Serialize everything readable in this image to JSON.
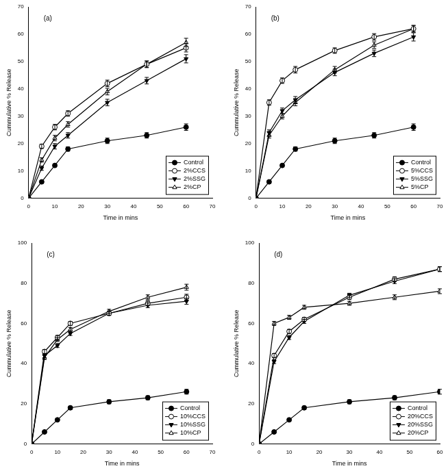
{
  "chart_data": [
    {
      "type": "line",
      "annotations": [
        "(a)"
      ],
      "x_label": "Time in mins",
      "y_label": "Cummulative % Release",
      "x": [
        0,
        5,
        10,
        15,
        30,
        45,
        60
      ],
      "xlim": [
        0,
        70
      ],
      "xticks": [
        0,
        10,
        20,
        30,
        40,
        50,
        60,
        70
      ],
      "ylim": [
        0,
        70
      ],
      "yticks": [
        0,
        10,
        20,
        30,
        40,
        50,
        60,
        70
      ],
      "grid": false,
      "legend": "lower right",
      "series": [
        {
          "name": "Control",
          "color": "#000000",
          "marker": "circle",
          "values": [
            0,
            6,
            12,
            18,
            21,
            23,
            26
          ],
          "errors": [
            0,
            0.5,
            0.5,
            0.8,
            1,
            1,
            1.2
          ]
        },
        {
          "name": "2%CCS",
          "color": "#000000",
          "marker": "circle-open",
          "values": [
            0,
            19,
            26,
            31,
            42,
            49,
            55
          ],
          "errors": [
            0,
            0.8,
            1,
            1,
            1.2,
            1.2,
            1.5
          ]
        },
        {
          "name": "2%SSG",
          "color": "#000000",
          "marker": "triangle-down",
          "values": [
            0,
            11,
            19,
            23,
            35,
            43,
            51
          ],
          "errors": [
            0,
            0.8,
            1,
            1,
            1.2,
            1.2,
            1.5
          ]
        },
        {
          "name": "2%CP",
          "color": "#000000",
          "marker": "triangle-open",
          "values": [
            0,
            14,
            22,
            27,
            39,
            49,
            57
          ],
          "errors": [
            0,
            0.8,
            1,
            1,
            1.2,
            1.2,
            1.5
          ]
        }
      ]
    },
    {
      "type": "line",
      "annotations": [
        "(b)"
      ],
      "x_label": "Time in mins",
      "y_label": "Cummulative % Release",
      "x": [
        0,
        5,
        10,
        15,
        30,
        45,
        60
      ],
      "xlim": [
        0,
        70
      ],
      "xticks": [
        0,
        10,
        20,
        30,
        40,
        50,
        60,
        70
      ],
      "ylim": [
        0,
        70
      ],
      "yticks": [
        0,
        10,
        20,
        30,
        40,
        50,
        60,
        70
      ],
      "grid": false,
      "legend": "lower right",
      "series": [
        {
          "name": "Control",
          "color": "#000000",
          "marker": "circle",
          "values": [
            0,
            6,
            12,
            18,
            21,
            23,
            26
          ],
          "errors": [
            0,
            0.5,
            0.5,
            0.8,
            1,
            1,
            1.2
          ]
        },
        {
          "name": "5%CCS",
          "color": "#000000",
          "marker": "circle-open",
          "values": [
            0,
            35,
            43,
            47,
            54,
            59,
            62
          ],
          "errors": [
            0,
            1,
            1,
            1.2,
            1,
            1.2,
            1.2
          ]
        },
        {
          "name": "5%SSG",
          "color": "#000000",
          "marker": "triangle-down",
          "values": [
            0,
            24,
            32,
            36,
            46,
            53,
            59
          ],
          "errors": [
            0,
            1,
            1,
            1.2,
            1.2,
            1.2,
            1.5
          ]
        },
        {
          "name": "5%CP",
          "color": "#000000",
          "marker": "triangle-open",
          "values": [
            0,
            23,
            30,
            35,
            47,
            56,
            62
          ],
          "errors": [
            0,
            1,
            1,
            1.2,
            1.2,
            1.2,
            1.2
          ]
        }
      ]
    },
    {
      "type": "line",
      "annotations": [
        "(c)"
      ],
      "x_label": "Time in mins",
      "y_label": "Cummulative % Release",
      "x": [
        0,
        5,
        10,
        15,
        30,
        45,
        60
      ],
      "xlim": [
        0,
        70
      ],
      "xticks": [
        0,
        10,
        20,
        30,
        40,
        50,
        60,
        70
      ],
      "ylim": [
        0,
        100
      ],
      "yticks": [
        0,
        20,
        40,
        60,
        80,
        100
      ],
      "grid": false,
      "legend": "lower right",
      "series": [
        {
          "name": "Control",
          "color": "#000000",
          "marker": "circle",
          "values": [
            0,
            6,
            12,
            18,
            21,
            23,
            26
          ],
          "errors": [
            0,
            0.5,
            0.5,
            0.8,
            1,
            1,
            1.2
          ]
        },
        {
          "name": "10%CCS",
          "color": "#000000",
          "marker": "circle-open",
          "values": [
            0,
            46,
            53,
            60,
            65,
            70,
            73
          ],
          "errors": [
            0,
            1,
            1,
            1,
            1,
            1.2,
            1.5
          ]
        },
        {
          "name": "10%SSG",
          "color": "#000000",
          "marker": "triangle-down",
          "values": [
            0,
            44,
            49,
            55,
            65,
            69,
            71
          ],
          "errors": [
            0,
            1,
            1,
            1,
            1,
            1.2,
            1.5
          ]
        },
        {
          "name": "10%CP",
          "color": "#000000",
          "marker": "triangle-open",
          "values": [
            0,
            43,
            52,
            57,
            66,
            73,
            78
          ],
          "errors": [
            0,
            1,
            1,
            1,
            1,
            1.2,
            1.5
          ]
        }
      ]
    },
    {
      "type": "line",
      "annotations": [
        "(d)"
      ],
      "x_label": "Time in mins",
      "y_label": "Cummulative % Release",
      "x": [
        0,
        5,
        10,
        15,
        30,
        45,
        60
      ],
      "xlim": [
        0,
        60
      ],
      "xticks": [
        0,
        10,
        20,
        30,
        40,
        50,
        60
      ],
      "ylim": [
        0,
        100
      ],
      "yticks": [
        0,
        20,
        40,
        60,
        80,
        100
      ],
      "grid": false,
      "legend": "lower right",
      "series": [
        {
          "name": "Control",
          "color": "#000000",
          "marker": "circle",
          "values": [
            0,
            6,
            12,
            18,
            21,
            23,
            26
          ],
          "errors": [
            0,
            0.5,
            0.5,
            0.8,
            1,
            1,
            1.2
          ]
        },
        {
          "name": "20%CCS",
          "color": "#000000",
          "marker": "circle-open",
          "values": [
            0,
            44,
            56,
            62,
            73,
            82,
            87
          ],
          "errors": [
            0,
            1,
            1,
            1,
            1,
            1.2,
            1.2
          ]
        },
        {
          "name": "20%SSG",
          "color": "#000000",
          "marker": "triangle-down",
          "values": [
            0,
            41,
            53,
            61,
            74,
            81,
            87
          ],
          "errors": [
            0,
            1,
            1,
            1,
            1,
            1.2,
            1.2
          ]
        },
        {
          "name": "20%CP",
          "color": "#000000",
          "marker": "triangle-open",
          "values": [
            0,
            60,
            63,
            68,
            70,
            73,
            76
          ],
          "errors": [
            0,
            1,
            1,
            1,
            1,
            1.2,
            1.2
          ]
        }
      ]
    }
  ]
}
